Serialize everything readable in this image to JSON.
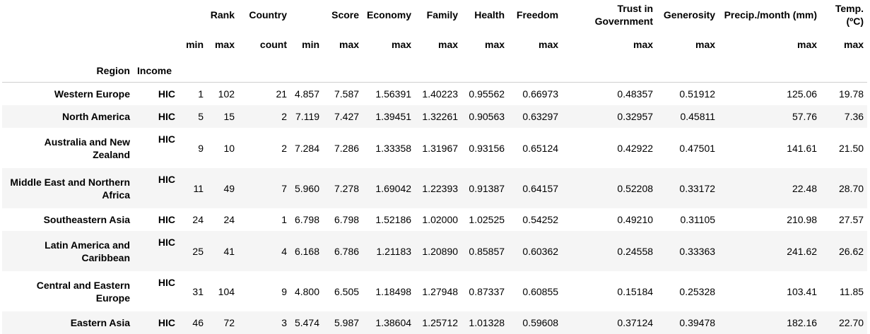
{
  "header": {
    "groups": [
      "Rank",
      "Country",
      "Score",
      "Economy",
      "Family",
      "Health",
      "Freedom",
      "Trust in Government",
      "Generosity",
      "Precip./month (mm)",
      "Temp. (ºC)"
    ],
    "stats": [
      "min",
      "max",
      "count",
      "min",
      "max",
      "max",
      "max",
      "max",
      "max",
      "max",
      "max",
      "max",
      "max"
    ],
    "index_names": [
      "Region",
      "Income"
    ]
  },
  "rows": [
    {
      "region": "Western Europe",
      "income": "HIC",
      "cells": [
        "1",
        "102",
        "21",
        "4.857",
        "7.587",
        "1.56391",
        "1.40223",
        "0.95562",
        "0.66973",
        "0.48357",
        "0.51912",
        "125.06",
        "19.78"
      ]
    },
    {
      "region": "North America",
      "income": "HIC",
      "cells": [
        "5",
        "15",
        "2",
        "7.119",
        "7.427",
        "1.39451",
        "1.32261",
        "0.90563",
        "0.63297",
        "0.32957",
        "0.45811",
        "57.76",
        "7.36"
      ]
    },
    {
      "region": "Australia and New Zealand",
      "income": "HIC",
      "cells": [
        "9",
        "10",
        "2",
        "7.284",
        "7.286",
        "1.33358",
        "1.31967",
        "0.93156",
        "0.65124",
        "0.42922",
        "0.47501",
        "141.61",
        "21.50"
      ]
    },
    {
      "region": "Middle East and Northern Africa",
      "income": "HIC",
      "cells": [
        "11",
        "49",
        "7",
        "5.960",
        "7.278",
        "1.69042",
        "1.22393",
        "0.91387",
        "0.64157",
        "0.52208",
        "0.33172",
        "22.48",
        "28.70"
      ]
    },
    {
      "region": "Southeastern Asia",
      "income": "HIC",
      "cells": [
        "24",
        "24",
        "1",
        "6.798",
        "6.798",
        "1.52186",
        "1.02000",
        "1.02525",
        "0.54252",
        "0.49210",
        "0.31105",
        "210.98",
        "27.57"
      ]
    },
    {
      "region": "Latin America and Caribbean",
      "income": "HIC",
      "cells": [
        "25",
        "41",
        "4",
        "6.168",
        "6.786",
        "1.21183",
        "1.20890",
        "0.85857",
        "0.60362",
        "0.24558",
        "0.33363",
        "241.62",
        "26.62"
      ]
    },
    {
      "region": "Central and Eastern Europe",
      "income": "HIC",
      "cells": [
        "31",
        "104",
        "9",
        "4.800",
        "6.505",
        "1.18498",
        "1.27948",
        "0.87337",
        "0.60855",
        "0.15184",
        "0.25328",
        "103.41",
        "11.85"
      ]
    },
    {
      "region": "Eastern Asia",
      "income": "HIC",
      "cells": [
        "46",
        "72",
        "3",
        "5.474",
        "5.987",
        "1.38604",
        "1.25712",
        "1.01328",
        "0.59608",
        "0.37124",
        "0.39478",
        "182.16",
        "22.70"
      ]
    }
  ]
}
